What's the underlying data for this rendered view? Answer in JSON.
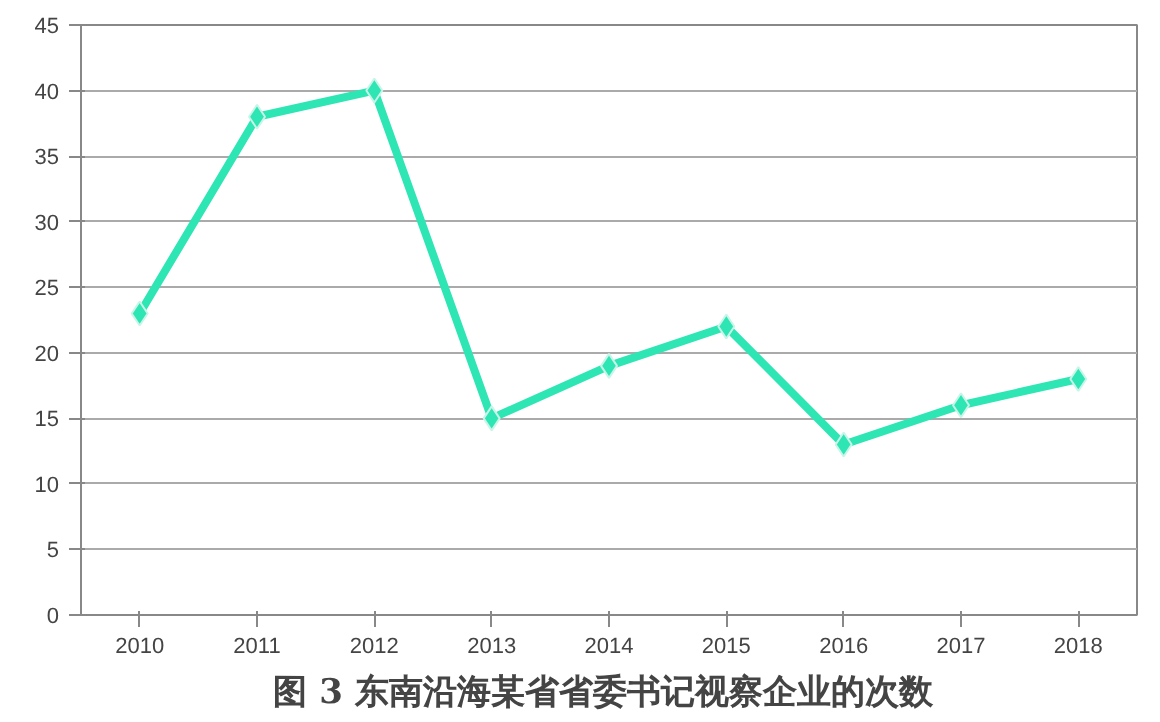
{
  "chart_data": {
    "type": "line",
    "title": "图 3  东南沿海某省省委书记视察企业的次数",
    "categories": [
      "2010",
      "2011",
      "2012",
      "2013",
      "2014",
      "2015",
      "2016",
      "2017",
      "2018"
    ],
    "values": [
      23,
      38,
      40,
      15,
      19,
      22,
      13,
      16,
      18
    ],
    "color": "#2ee6b4",
    "marker": "diamond",
    "line_style": "solid",
    "ylim": [
      0,
      45
    ],
    "yticks": [
      0,
      5,
      10,
      15,
      20,
      25,
      30,
      35,
      40,
      45
    ],
    "grid": "y"
  }
}
